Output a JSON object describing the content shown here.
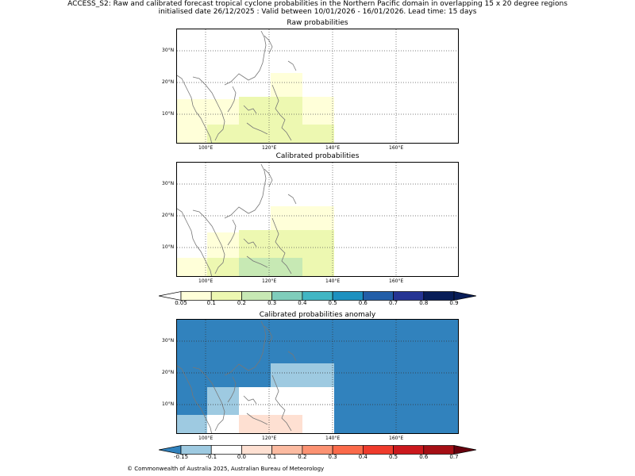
{
  "title": {
    "line1": "ACCESS_S2: Raw and calibrated forecast tropical cyclone probabilities in the Northern Pacific domain in overlapping 15 x 20 degree regions",
    "line2": "initialised date 26/12/2025 :  Valid between 10/01/2026 - 16/01/2026. Lead time: 15 days"
  },
  "panels": {
    "raw": {
      "title": "Raw probabilities"
    },
    "calibrated": {
      "title": "Calibrated probabilities"
    },
    "anomaly": {
      "title": "Calibrated probabilities anomaly"
    }
  },
  "axes": {
    "lon_labels": [
      "100°E",
      "120°E",
      "140°E",
      "160°E"
    ],
    "lat_labels": [
      "30°N",
      "20°N",
      "10°N"
    ]
  },
  "colorbars": {
    "probability": {
      "labels": [
        "0.05",
        "0.1",
        "0.2",
        "0.3",
        "0.4",
        "0.5",
        "0.6",
        "0.7",
        "0.8",
        "0.9"
      ],
      "colors": [
        "#ffffd9",
        "#edf8b1",
        "#c7e9b4",
        "#7fcdbb",
        "#41b6c4",
        "#1d91c0",
        "#225ea8",
        "#253494",
        "#081d58"
      ],
      "under_color": "#ffffff",
      "over_color": "#081d58"
    },
    "anomaly": {
      "labels": [
        "-0.15",
        "-0.1",
        "0.0",
        "0.1",
        "0.2",
        "0.3",
        "0.4",
        "0.5",
        "0.6",
        "0.7"
      ],
      "colors": [
        "#9ecae1",
        "#ffffff",
        "#fee0d2",
        "#fcbba1",
        "#fc9272",
        "#fb6a4a",
        "#ef3b2c",
        "#cb181d",
        "#a50f15"
      ],
      "under_color": "#3182bd",
      "over_color": "#67000d"
    }
  },
  "copyright": "© Commonwealth of Australia 2025, Australian Bureau of Meteorology"
}
